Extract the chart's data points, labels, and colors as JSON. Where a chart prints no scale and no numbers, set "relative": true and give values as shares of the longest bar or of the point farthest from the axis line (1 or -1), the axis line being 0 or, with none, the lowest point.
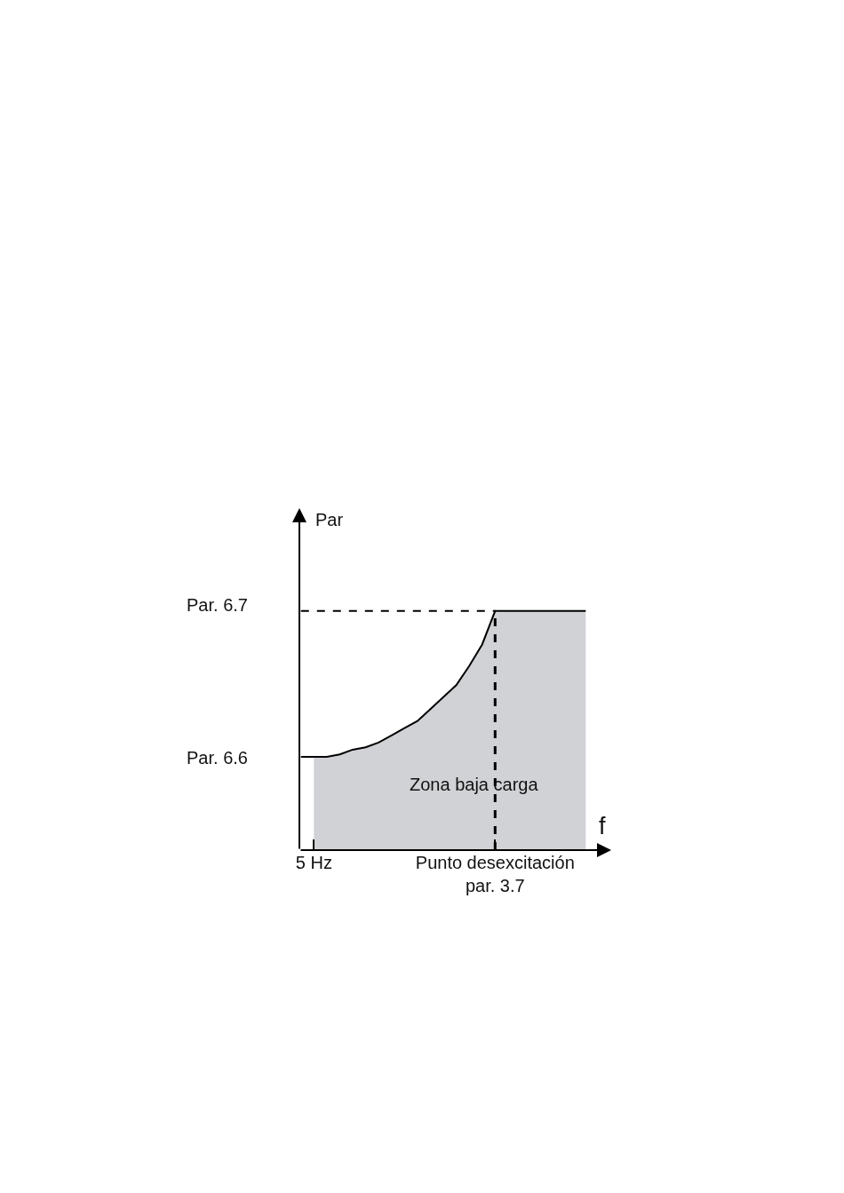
{
  "chart_data": {
    "type": "area",
    "relative": true,
    "xlabel": "f",
    "ylabel": "Par",
    "categories": [
      null,
      "5 Hz",
      null,
      null,
      null,
      null,
      null,
      null,
      null,
      null,
      null,
      null,
      null,
      null,
      null,
      "Punto desexcitación\npar. 3.7",
      null,
      null,
      null,
      null,
      null,
      null,
      null
    ],
    "series": [
      {
        "color": "#d1d2d6",
        "values": [
          null,
          0.39,
          0.39,
          0.4,
          0.42,
          0.43,
          0.45,
          0.48,
          0.51,
          0.54,
          0.59,
          0.64,
          0.69,
          0.77,
          0.86,
          1,
          1,
          1,
          1,
          1,
          1,
          1,
          1
        ]
      },
      {
        "type": "line",
        "color": "#000000",
        "line_style": "dashed",
        "values": [
          1,
          1,
          1,
          1,
          1,
          1,
          1,
          1,
          1,
          1,
          1,
          1,
          1,
          1,
          1,
          1,
          null,
          null,
          null,
          null,
          null,
          null,
          null
        ]
      },
      {
        "type": "line",
        "color": "#000000",
        "line_style": "solid",
        "values": [
          0.39,
          0.39,
          0.39,
          0.4,
          0.42,
          0.43,
          0.45,
          0.48,
          0.51,
          0.54,
          0.59,
          0.64,
          0.69,
          0.77,
          0.86,
          1,
          1,
          1,
          1,
          1,
          1,
          1,
          1
        ]
      }
    ],
    "ref_lines": [
      {
        "axis": "x",
        "value": "Punto desexcitación\npar. 3.7",
        "color": "#000000",
        "line_style": "dashed"
      }
    ],
    "annotations": [
      "Par. 6.7",
      "Par. 6.6",
      "Zona baja carga"
    ]
  }
}
